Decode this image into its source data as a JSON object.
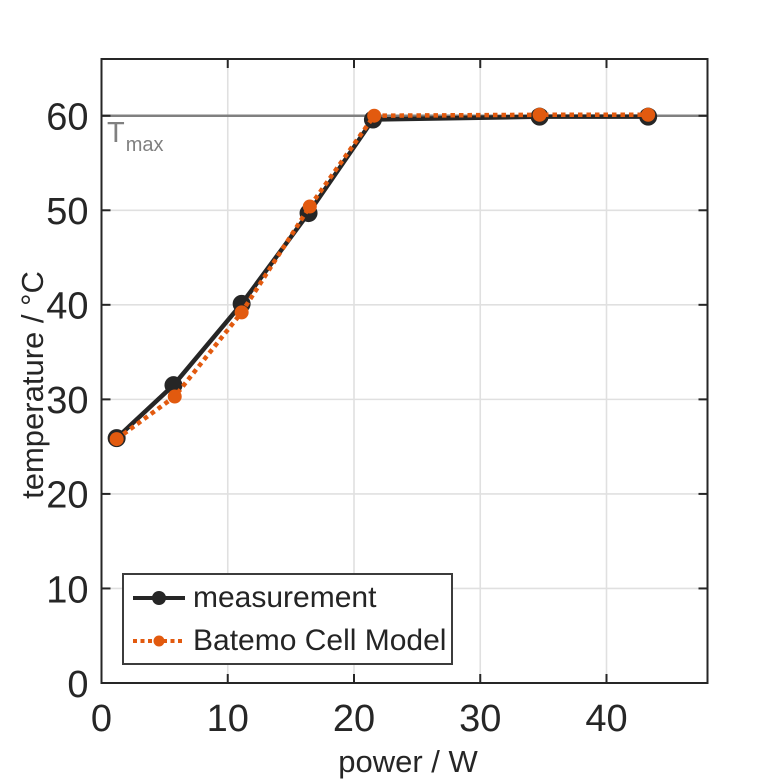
{
  "chart_data": {
    "type": "line",
    "title": "",
    "xlabel": "power / W",
    "ylabel": "temperature / °C",
    "xlim": [
      0,
      48
    ],
    "ylim": [
      0,
      66
    ],
    "xticks": [
      0,
      10,
      20,
      30,
      40
    ],
    "yticks": [
      0,
      10,
      20,
      30,
      40,
      50,
      60
    ],
    "grid": true,
    "legend_position": "bottom-left-inside",
    "hline": {
      "y": 60,
      "label": "T",
      "label_sub": "max",
      "color": "#808080"
    },
    "series": [
      {
        "name": "measurement",
        "color": "#262626",
        "line_style": "solid",
        "marker": "circle",
        "marker_radius": 9,
        "points": [
          [
            1.2,
            25.9
          ],
          [
            5.7,
            31.5
          ],
          [
            11.1,
            40.1
          ],
          [
            16.4,
            49.7
          ],
          [
            21.5,
            59.6
          ],
          [
            34.7,
            59.9
          ],
          [
            43.3,
            59.9
          ]
        ]
      },
      {
        "name": "Batemo Cell Model",
        "color": "#E25A0F",
        "line_style": "dotted",
        "marker": "circle",
        "marker_radius": 7,
        "points": [
          [
            1.2,
            25.8
          ],
          [
            5.8,
            30.3
          ],
          [
            11.1,
            39.2
          ],
          [
            16.5,
            50.4
          ],
          [
            21.6,
            60.0
          ],
          [
            34.7,
            60.1
          ],
          [
            43.3,
            60.1
          ]
        ]
      }
    ],
    "axis_color": "#262626",
    "grid_color": "#E0E0E0",
    "background": "#FFFFFF"
  }
}
